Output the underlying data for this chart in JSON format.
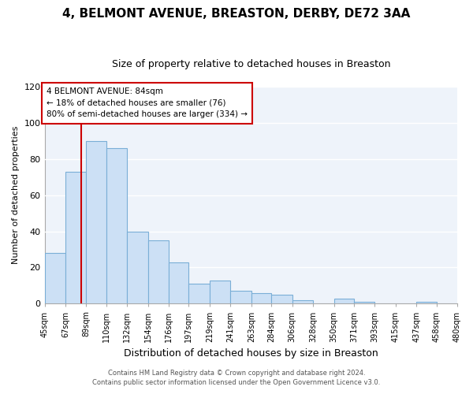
{
  "title": "4, BELMONT AVENUE, BREASTON, DERBY, DE72 3AA",
  "subtitle": "Size of property relative to detached houses in Breaston",
  "xlabel": "Distribution of detached houses by size in Breaston",
  "ylabel": "Number of detached properties",
  "bar_edges": [
    45,
    67,
    89,
    110,
    132,
    154,
    176,
    197,
    219,
    241,
    263,
    284,
    306,
    328,
    350,
    371,
    393,
    415,
    437,
    458,
    480
  ],
  "bar_heights": [
    28,
    73,
    90,
    86,
    40,
    35,
    23,
    11,
    13,
    7,
    6,
    5,
    2,
    0,
    3,
    1,
    0,
    0,
    1,
    0
  ],
  "bar_color": "#cce0f5",
  "bar_edge_color": "#7aaed6",
  "property_size": 84,
  "marker_line_color": "#cc0000",
  "ylim": [
    0,
    120
  ],
  "yticks": [
    0,
    20,
    40,
    60,
    80,
    100,
    120
  ],
  "annotation_box_color": "#ffffff",
  "annotation_box_edge_color": "#cc0000",
  "annotation_title": "4 BELMONT AVENUE: 84sqm",
  "annotation_line1": "← 18% of detached houses are smaller (76)",
  "annotation_line2": "80% of semi-detached houses are larger (334) →",
  "footer_line1": "Contains HM Land Registry data © Crown copyright and database right 2024.",
  "footer_line2": "Contains public sector information licensed under the Open Government Licence v3.0.",
  "background_color": "#ffffff",
  "plot_background_color": "#eef3fa",
  "grid_color": "#ffffff",
  "tick_labels": [
    "45sqm",
    "67sqm",
    "89sqm",
    "110sqm",
    "132sqm",
    "154sqm",
    "176sqm",
    "197sqm",
    "219sqm",
    "241sqm",
    "263sqm",
    "284sqm",
    "306sqm",
    "328sqm",
    "350sqm",
    "371sqm",
    "393sqm",
    "415sqm",
    "437sqm",
    "458sqm",
    "480sqm"
  ],
  "title_fontsize": 11,
  "subtitle_fontsize": 9,
  "ylabel_fontsize": 8,
  "xlabel_fontsize": 9
}
